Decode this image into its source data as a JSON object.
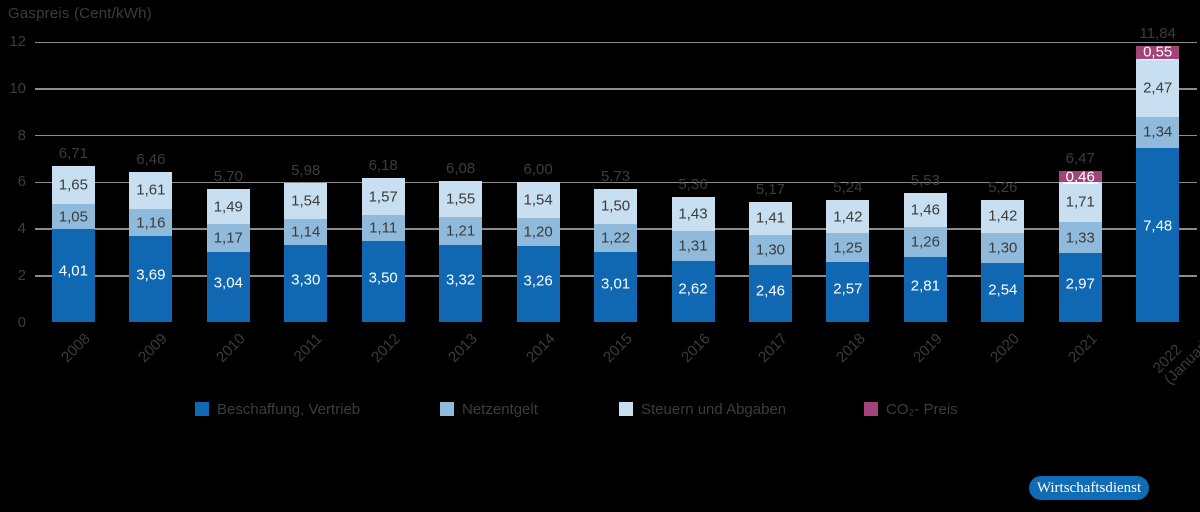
{
  "badge": {
    "label": "Wirtschaftsdienst"
  },
  "chart_data": {
    "type": "bar",
    "stacked": true,
    "title": "Gaspreis (Cent/kWh)",
    "ylabel": "Gaspreis (Cent/kWh)",
    "xlabel": "",
    "decimal_separator": ",",
    "ylim": [
      0,
      12
    ],
    "yticks": [
      0,
      2,
      4,
      6,
      8,
      10,
      12
    ],
    "grid": true,
    "legend_position": "bottom",
    "categories": [
      "2008",
      "2009",
      "2010",
      "2011",
      "2012",
      "2013",
      "2014",
      "2015",
      "2016",
      "2017",
      "2018",
      "2019",
      "2020",
      "2021",
      "2022 (Januar)"
    ],
    "series": [
      {
        "name": "Beschaffung, Vertrieb",
        "color": "#0F68B1",
        "label_color": "#FFFFFF",
        "values": [
          4.01,
          3.69,
          3.04,
          3.3,
          3.5,
          3.32,
          3.26,
          3.01,
          2.62,
          2.46,
          2.57,
          2.81,
          2.54,
          2.97,
          7.48
        ]
      },
      {
        "name": "Netzentgelt",
        "color": "#90BADC",
        "label_color": "#3C3C3B",
        "values": [
          1.05,
          1.16,
          1.17,
          1.14,
          1.11,
          1.21,
          1.2,
          1.22,
          1.31,
          1.3,
          1.25,
          1.26,
          1.3,
          1.33,
          1.34
        ]
      },
      {
        "name": "Steuern und Abgaben",
        "color": "#C7DFF0",
        "label_color": "#3C3C3B",
        "values": [
          1.65,
          1.61,
          1.49,
          1.54,
          1.57,
          1.55,
          1.54,
          1.5,
          1.43,
          1.41,
          1.42,
          1.46,
          1.42,
          1.71,
          2.47
        ]
      },
      {
        "name": "CO₂- Preis",
        "color": "#A3437C",
        "label_color": "#FFFFFF",
        "values": [
          0,
          0,
          0,
          0,
          0,
          0,
          0,
          0,
          0,
          0,
          0,
          0,
          0,
          0.46,
          0.55
        ]
      }
    ],
    "totals": [
      6.71,
      6.46,
      5.7,
      5.98,
      6.18,
      6.08,
      6.0,
      5.73,
      5.36,
      5.17,
      5.24,
      5.53,
      5.26,
      6.47,
      11.84
    ]
  },
  "colors": {
    "background": "#000000",
    "grid": "#8C8C8C",
    "text": "#3C3C3B",
    "badge_background": "#0F6CB5",
    "badge_text": "#FFFFFF"
  }
}
